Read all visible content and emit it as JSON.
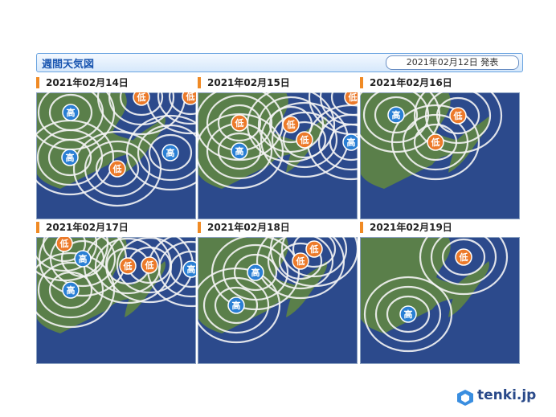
{
  "header": {
    "title": "週間天気図",
    "issued": "2021年02月12日 発表"
  },
  "panels": [
    {
      "date": "2021年02月14日",
      "systems": [
        "高",
        "低",
        "低",
        "高",
        "高",
        "低"
      ]
    },
    {
      "date": "2021年02月15日",
      "systems": [
        "低",
        "高",
        "低",
        "低",
        "高",
        "低"
      ]
    },
    {
      "date": "2021年02月16日",
      "systems": [
        "高",
        "低",
        "低"
      ]
    },
    {
      "date": "2021年02月17日",
      "systems": [
        "低",
        "高",
        "高",
        "低",
        "低",
        "高"
      ]
    },
    {
      "date": "2021年02月18日",
      "systems": [
        "低",
        "低",
        "高",
        "高"
      ]
    },
    {
      "date": "2021年02月19日",
      "systems": [
        "低",
        "高"
      ]
    }
  ],
  "logo": "tenki.jp"
}
